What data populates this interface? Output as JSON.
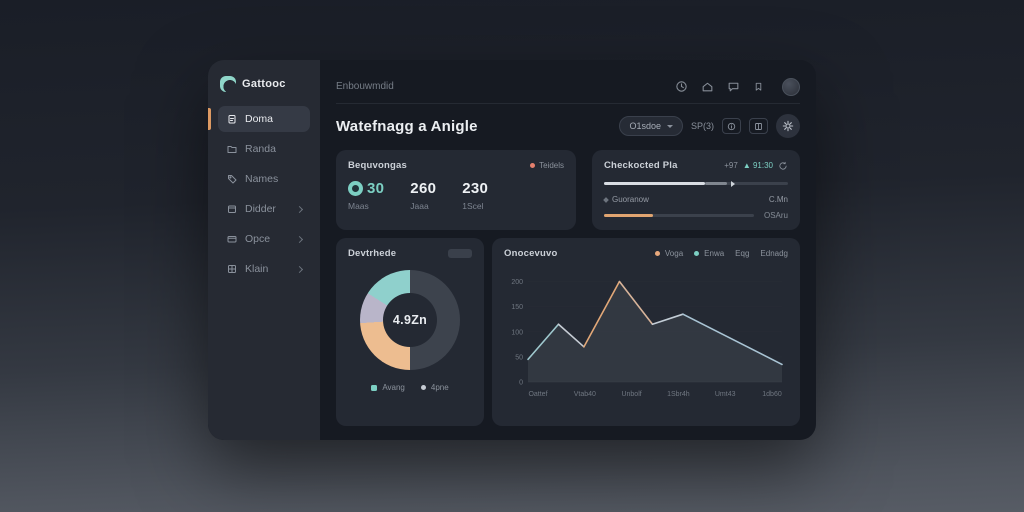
{
  "colors": {
    "teal": "#7ccfc3",
    "orange": "#e0a470",
    "red": "#e5806e",
    "accent_bar": "#dd9a63",
    "white_bar": "#d9dde3"
  },
  "sidebar": {
    "logo_text": "Gattooc",
    "items": [
      {
        "label": "Doma"
      },
      {
        "label": "Randa"
      },
      {
        "label": "Names"
      },
      {
        "label": "Didder"
      },
      {
        "label": "Opce"
      },
      {
        "label": "Klain"
      }
    ]
  },
  "topbar": {
    "breadcrumb": "Enbouwmdid"
  },
  "page": {
    "title": "Watefnagg a Anigle",
    "filter_button": "O1sdoe",
    "range_text": "SP(3)"
  },
  "stats_card": {
    "title": "Bequvongas",
    "badge_label": "Teidels",
    "stats": [
      {
        "value": "30",
        "label": "Maas"
      },
      {
        "value": "260",
        "label": "Jaaa"
      },
      {
        "value": "230",
        "label": "1Scel"
      }
    ]
  },
  "progress_card": {
    "title": "Checkocted Pla",
    "delta_text": "+97",
    "change_text": "▲ 91:30",
    "bar1_pct": 55,
    "bar1_ext_pct": 12,
    "row_label": "Guoranow",
    "row_value": "C.Mn",
    "bar2_pct": 33,
    "bar2_value": "OSAru"
  },
  "donut_card": {
    "title": "Devtrhede",
    "center_value": "4.9Zn",
    "legend": [
      {
        "label": "Avang",
        "color": "#7ccfc3"
      },
      {
        "label": "4pne",
        "color": "#c6cbd3"
      }
    ]
  },
  "chart_card": {
    "title": "Onocevuvo",
    "legend": [
      {
        "label": "Voga",
        "color": "#e8a87c"
      },
      {
        "label": "Enwa",
        "color": "#7ccfc3"
      }
    ],
    "link1": "Eqg",
    "link2": "Ednadg"
  },
  "chart_data": [
    {
      "type": "pie",
      "title": "Devtrhede",
      "donut": true,
      "center_label": "4.9Zn",
      "slices": [
        {
          "label": "base",
          "value": 50,
          "color": "#3d434d"
        },
        {
          "label": "orange",
          "value": 24,
          "color": "#edbd90"
        },
        {
          "label": "lavender",
          "value": 10,
          "color": "#b9b5c9"
        },
        {
          "label": "teal",
          "value": 16,
          "color": "#8fd0cc"
        }
      ],
      "legend": [
        "Avang",
        "4pne"
      ],
      "legend_position": "bottom"
    },
    {
      "type": "line",
      "title": "Onocevuvo",
      "x_labels": [
        "Oattef",
        "Vtab40",
        "Unbolf",
        "1Sbr4h",
        "Umt43",
        "1db60"
      ],
      "points": [
        {
          "x": 0.0,
          "y": 45
        },
        {
          "x": 0.12,
          "y": 115
        },
        {
          "x": 0.22,
          "y": 70
        },
        {
          "x": 0.36,
          "y": 200
        },
        {
          "x": 0.49,
          "y": 115
        },
        {
          "x": 0.61,
          "y": 135
        },
        {
          "x": 1.0,
          "y": 35
        }
      ],
      "y_ticks": [
        200,
        150,
        100,
        50,
        0
      ],
      "ylim": [
        0,
        215
      ],
      "segment_colors": [
        "#9fc8ce",
        "#c6ccd4",
        "#e2a878",
        "#d8b49a",
        "#c3cdd6",
        "#a9c4d4"
      ],
      "area_fill": "#3a4049",
      "grid": true,
      "legend_position": "top-right"
    }
  ]
}
